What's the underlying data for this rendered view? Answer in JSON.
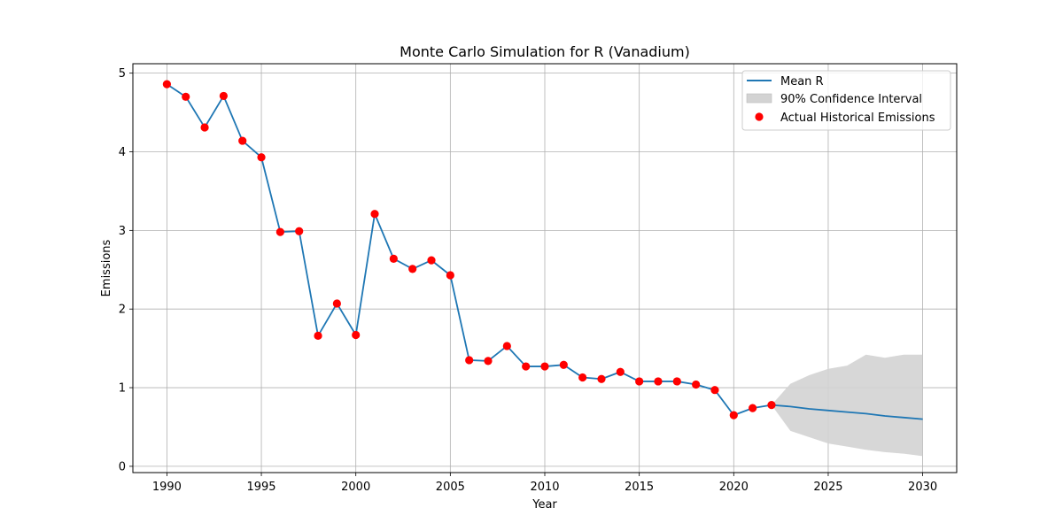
{
  "chart_data": {
    "type": "line",
    "title": "Monte Carlo Simulation for R (Vanadium)",
    "xlabel": "Year",
    "ylabel": "Emissions",
    "xlim": [
      1988.2,
      2031.8
    ],
    "ylim": [
      -0.08,
      5.12
    ],
    "xticks": [
      1990,
      1995,
      2000,
      2005,
      2010,
      2015,
      2020,
      2025,
      2030
    ],
    "yticks": [
      0,
      1,
      2,
      3,
      4,
      5
    ],
    "grid": true,
    "legend_position": "top-right",
    "legend": {
      "mean_label": "Mean R",
      "ci_label": "90% Confidence Interval",
      "hist_label": "Actual Historical Emissions"
    },
    "colors": {
      "mean_line": "#1f77b4",
      "historical_points": "#ff0000",
      "confidence_fill": "#d3d3d3",
      "grid": "#b0b0b0"
    },
    "historical": {
      "name": "Actual Historical Emissions",
      "x": [
        1990,
        1991,
        1992,
        1993,
        1994,
        1995,
        1996,
        1997,
        1998,
        1999,
        2000,
        2001,
        2002,
        2003,
        2004,
        2005,
        2006,
        2007,
        2008,
        2009,
        2010,
        2011,
        2012,
        2013,
        2014,
        2015,
        2016,
        2017,
        2018,
        2019,
        2020,
        2021,
        2022
      ],
      "y": [
        4.86,
        4.7,
        4.31,
        4.71,
        4.14,
        3.93,
        2.98,
        2.99,
        1.66,
        2.07,
        1.67,
        3.21,
        2.64,
        2.51,
        2.62,
        2.43,
        1.35,
        1.34,
        1.53,
        1.27,
        1.27,
        1.29,
        1.13,
        1.11,
        1.2,
        1.08,
        1.08,
        1.08,
        1.04,
        0.97,
        0.65,
        0.74,
        0.78
      ]
    },
    "mean": {
      "name": "Mean R",
      "x": [
        1990,
        1991,
        1992,
        1993,
        1994,
        1995,
        1996,
        1997,
        1998,
        1999,
        2000,
        2001,
        2002,
        2003,
        2004,
        2005,
        2006,
        2007,
        2008,
        2009,
        2010,
        2011,
        2012,
        2013,
        2014,
        2015,
        2016,
        2017,
        2018,
        2019,
        2020,
        2021,
        2022,
        2023,
        2024,
        2025,
        2026,
        2027,
        2028,
        2029,
        2030
      ],
      "y": [
        4.86,
        4.7,
        4.31,
        4.71,
        4.14,
        3.93,
        2.98,
        2.99,
        1.66,
        2.07,
        1.67,
        3.21,
        2.64,
        2.51,
        2.62,
        2.43,
        1.35,
        1.34,
        1.53,
        1.27,
        1.27,
        1.29,
        1.13,
        1.11,
        1.2,
        1.08,
        1.08,
        1.08,
        1.04,
        0.97,
        0.65,
        0.74,
        0.78,
        0.76,
        0.73,
        0.71,
        0.69,
        0.67,
        0.64,
        0.62,
        0.6
      ]
    },
    "confidence_interval": {
      "name": "90% Confidence Interval",
      "x": [
        2022,
        2023,
        2024,
        2025,
        2026,
        2027,
        2028,
        2029,
        2030
      ],
      "lower": [
        0.78,
        0.45,
        0.37,
        0.29,
        0.25,
        0.21,
        0.18,
        0.16,
        0.13
      ],
      "upper": [
        0.78,
        1.05,
        1.16,
        1.24,
        1.28,
        1.42,
        1.38,
        1.42,
        1.42
      ]
    }
  }
}
